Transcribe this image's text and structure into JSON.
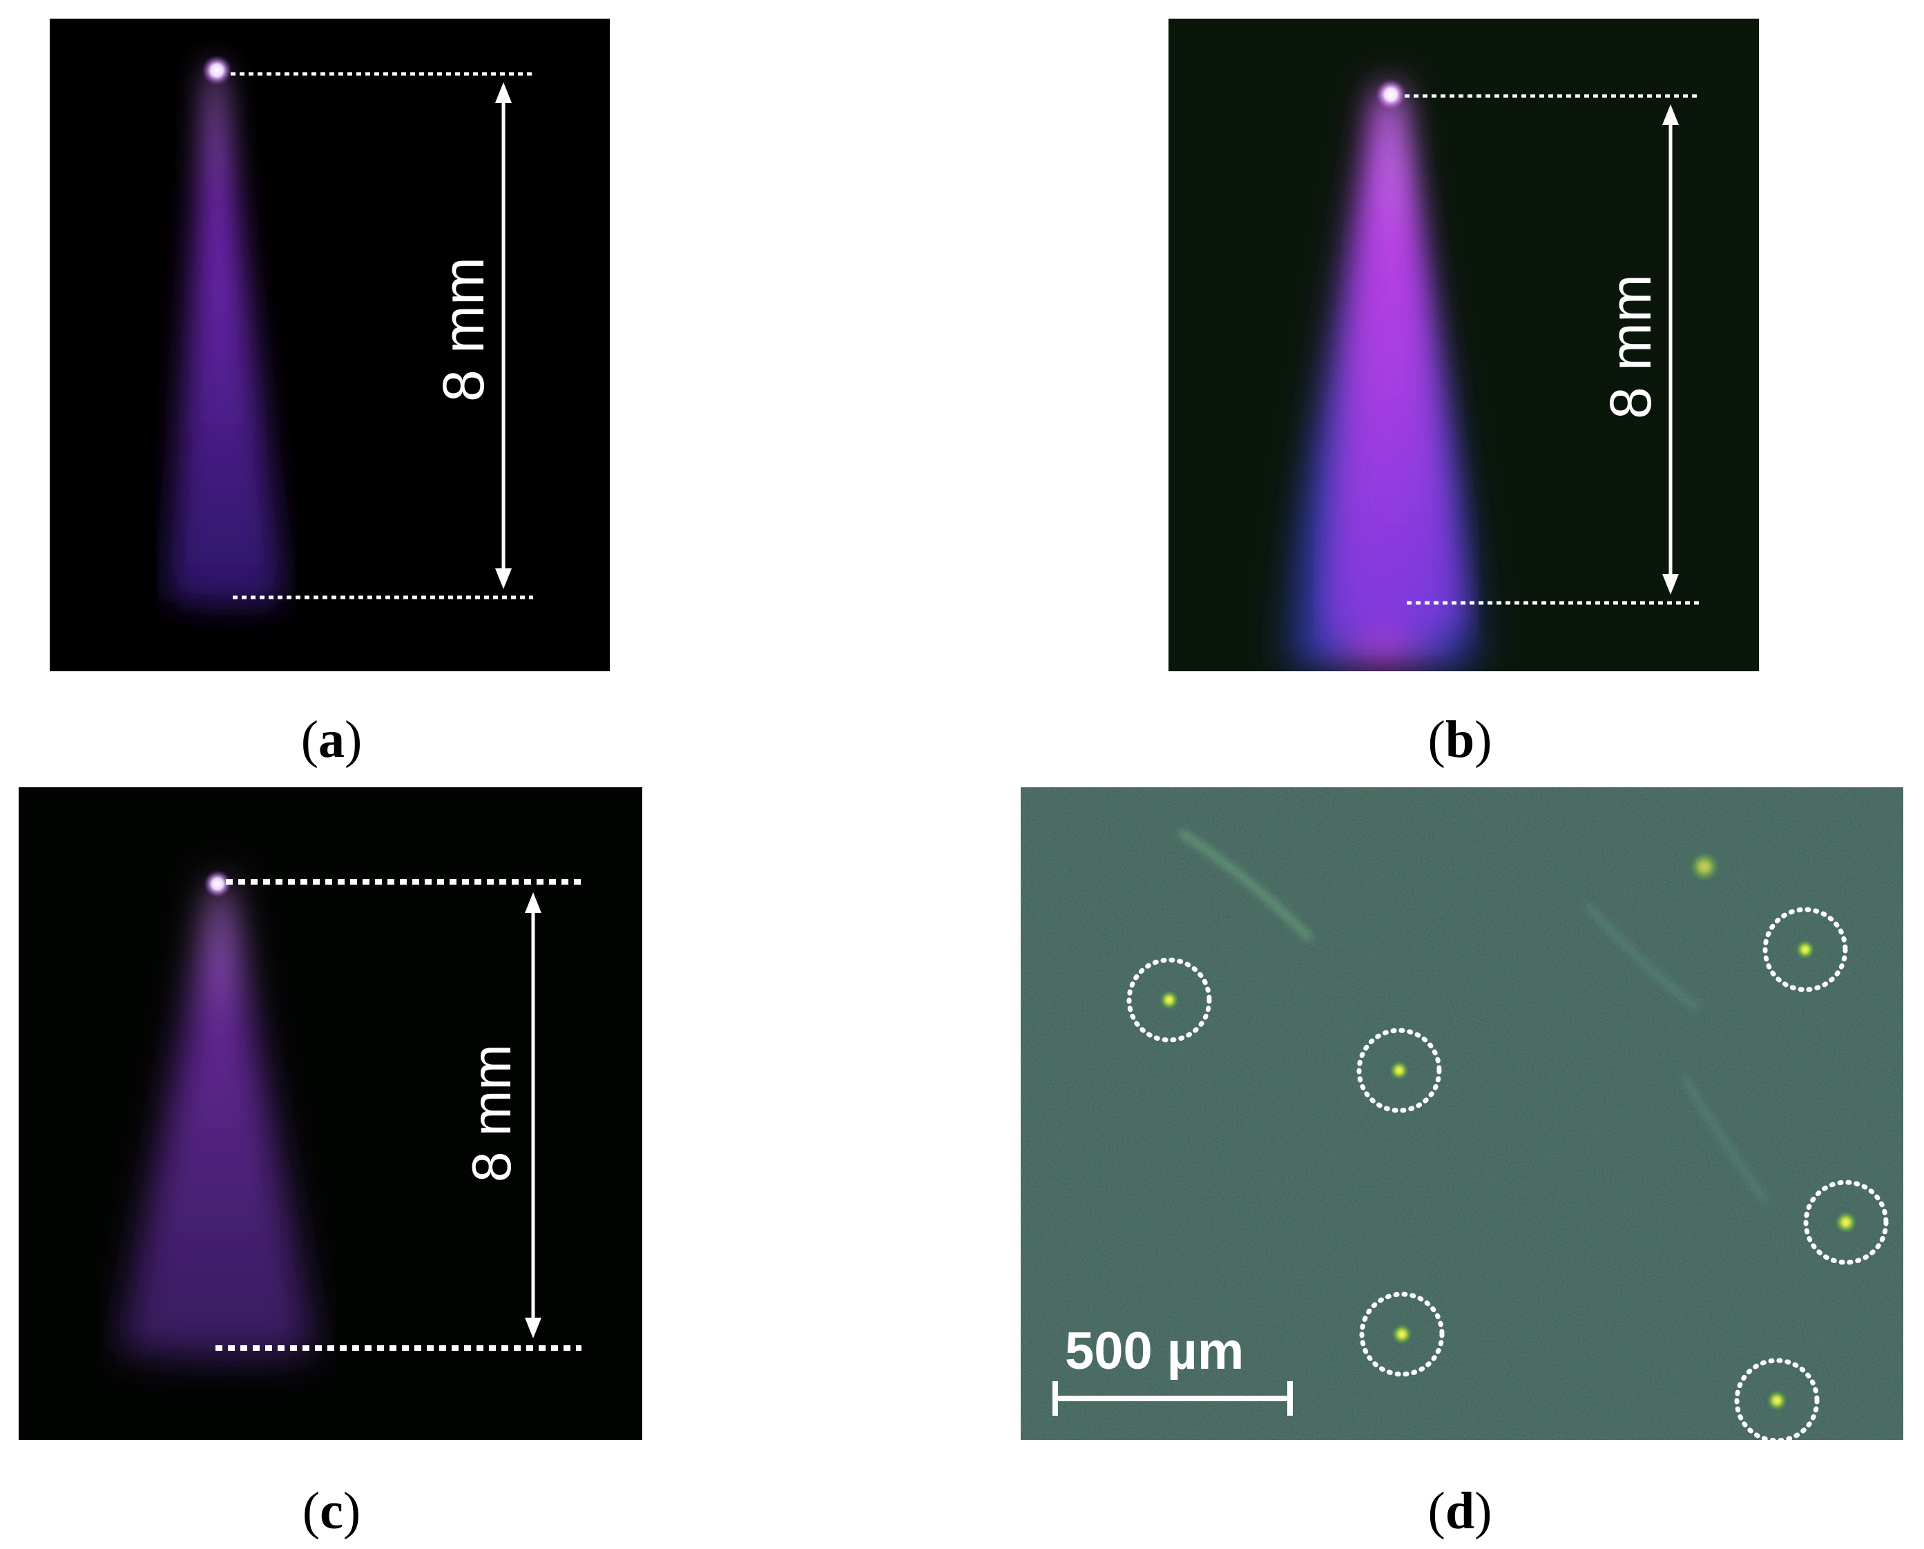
{
  "panels": [
    {
      "id": "a",
      "caption_open": "(",
      "caption_label": "a",
      "caption_close": ")",
      "scale_label": "8 mm"
    },
    {
      "id": "b",
      "caption_open": "(",
      "caption_label": "b",
      "caption_close": ")",
      "scale_label": "8 mm"
    },
    {
      "id": "c",
      "caption_open": "(",
      "caption_label": "c",
      "caption_close": ")",
      "scale_label": "8 mm"
    },
    {
      "id": "d",
      "caption_open": "(",
      "caption_label": "d",
      "caption_close": ")",
      "scale_label": "500 µm"
    }
  ],
  "colors": {
    "background": "#ffffff",
    "panel_a_bg": "#000000",
    "panel_b_bg": "#0b160b",
    "panel_c_bg": "#020402",
    "panel_d_bg": "#2f6a55",
    "plume": "#9a2fd8",
    "annotation": "#ffffff"
  }
}
